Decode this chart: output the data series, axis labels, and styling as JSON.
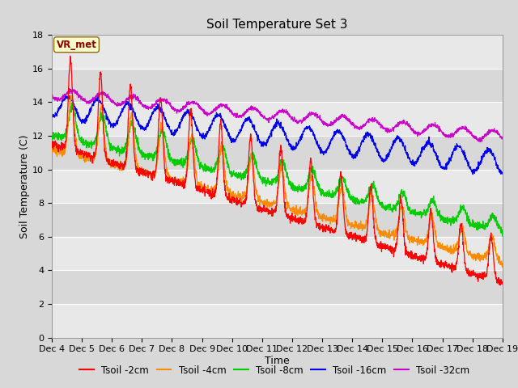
{
  "title": "Soil Temperature Set 3",
  "xlabel": "Time",
  "ylabel": "Soil Temperature (C)",
  "ylim": [
    0,
    18
  ],
  "yticks": [
    0,
    2,
    4,
    6,
    8,
    10,
    12,
    14,
    16,
    18
  ],
  "n_days": 15,
  "n_per_day": 144,
  "x_label_dates": [
    "Dec 4",
    "Dec 5",
    "Dec 6",
    "Dec 7",
    "Dec 8",
    "Dec 9",
    "Dec 10",
    "Dec 11",
    "Dec 12",
    "Dec 13",
    "Dec 14",
    "Dec 15",
    "Dec 16",
    "Dec 17",
    "Dec 18",
    "Dec 19"
  ],
  "line_colors": {
    "tsoil_2cm": "#FF0000",
    "tsoil_4cm": "#FF8C00",
    "tsoil_8cm": "#00CC00",
    "tsoil_16cm": "#0000EE",
    "tsoil_32cm": "#CC00CC"
  },
  "legend_labels": [
    "Tsoil -2cm",
    "Tsoil -4cm",
    "Tsoil -8cm",
    "Tsoil -16cm",
    "Tsoil -32cm"
  ],
  "annotation_text": "VR_met",
  "bg_color": "#D8D8D8",
  "plot_bg_color": "#E8E8E8",
  "stripe_colors": [
    "#E8E8E8",
    "#D8D8D8"
  ],
  "grid_color": "#FFFFFF",
  "title_fontsize": 11,
  "axis_fontsize": 9,
  "tick_fontsize": 8,
  "legend_fontsize": 8.5,
  "linewidth": 0.9
}
